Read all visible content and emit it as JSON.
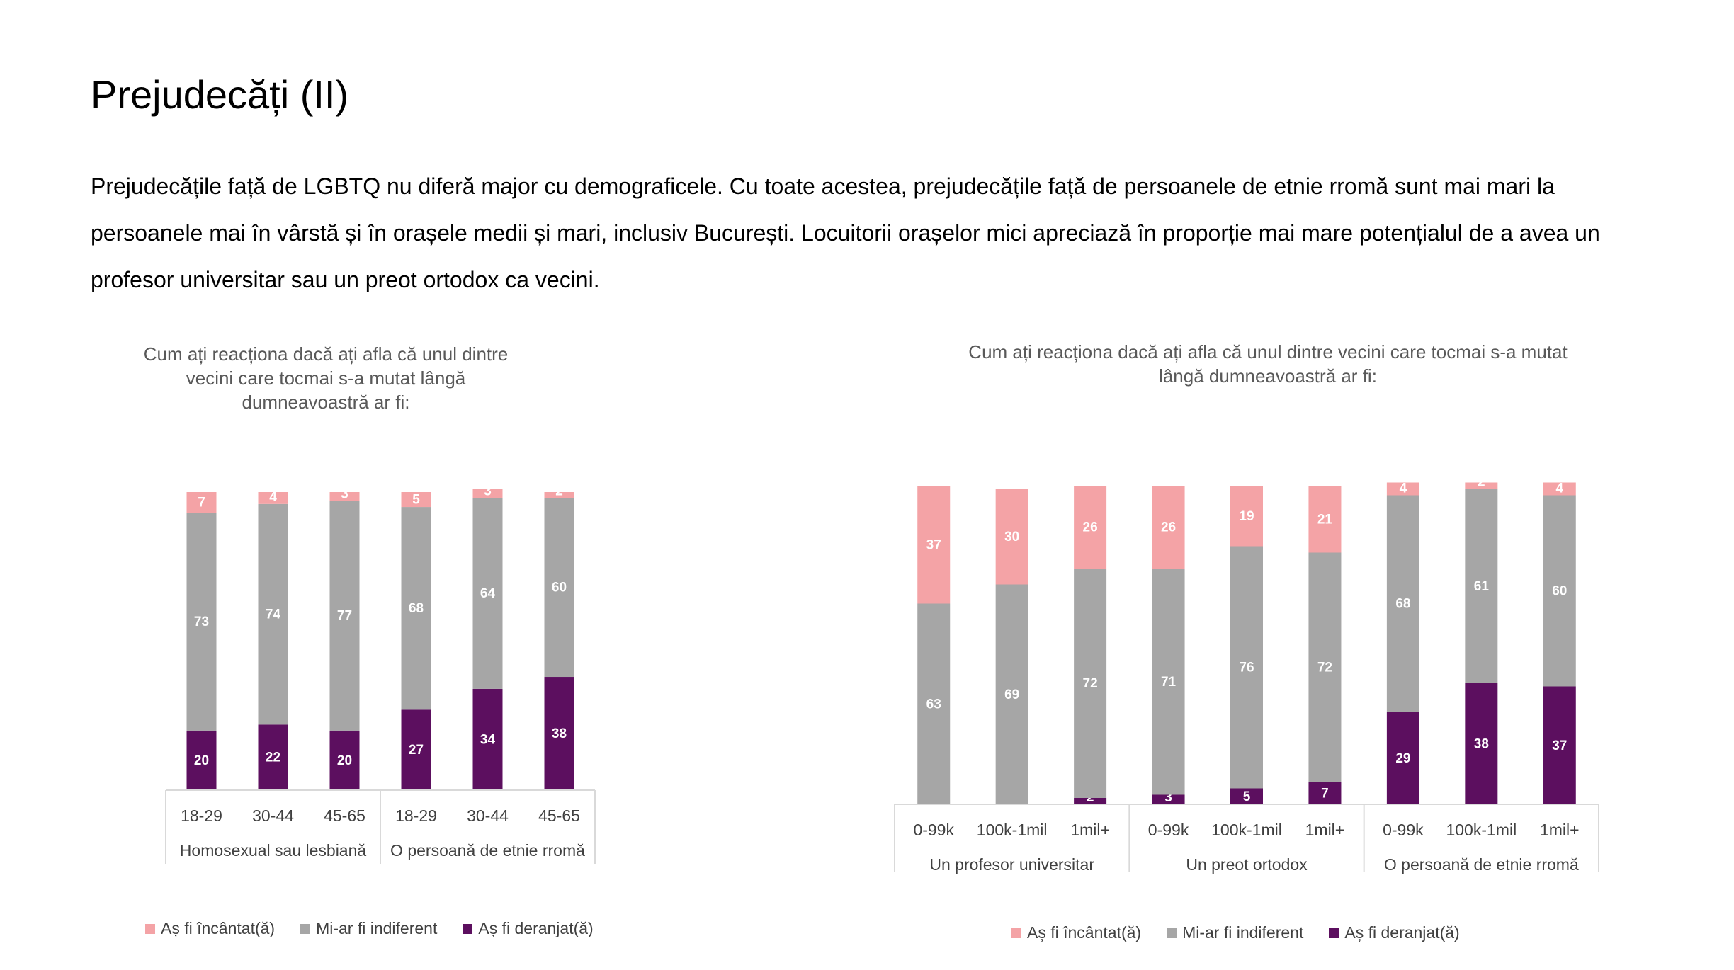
{
  "slide": {
    "title": "Prejudecăți (II)",
    "body": "Prejudecățile față de LGBTQ nu diferă major cu demograficele. Cu toate acestea, prejudecățile față de persoanele de etnie rromă sunt mai mari la persoanele mai în vârstă și în orașele medii și mari, inclusiv București. Locuitorii orașelor mici apreciază în proporție mai mare potențialul de a avea un profesor universitar sau un preot ortodox ca vecini."
  },
  "colors": {
    "incantat": "#F4A3A6",
    "indiferent": "#A6A6A6",
    "deranjat": "#5C0F5F"
  },
  "legend": [
    "Aș fi încântat(ă)",
    "Mi-ar fi indiferent",
    "Aș fi deranjat(ă)"
  ],
  "chart_data": [
    {
      "type": "bar",
      "stacked": true,
      "title": "Cum ați reacționa dacă ați afla că unul dintre vecini care tocmai s-a mutat lângă dumneavoastră ar fi:",
      "groups": [
        {
          "label": "Homosexual sau lesbiană",
          "categories": [
            "18-29",
            "30-44",
            "45-65"
          ]
        },
        {
          "label": "O persoană de etnie rromă",
          "categories": [
            "18-29",
            "30-44",
            "45-65"
          ]
        }
      ],
      "series": [
        {
          "name": "Aș fi deranjat(ă)",
          "values": [
            20,
            22,
            20,
            27,
            34,
            38
          ]
        },
        {
          "name": "Mi-ar fi indiferent",
          "values": [
            73,
            74,
            77,
            68,
            64,
            60
          ]
        },
        {
          "name": "Aș fi încântat(ă)",
          "values": [
            7,
            4,
            3,
            5,
            3,
            2
          ]
        }
      ],
      "ylim": [
        0,
        100
      ],
      "legend_position": "bottom"
    },
    {
      "type": "bar",
      "stacked": true,
      "title": "Cum ați reacționa dacă ați afla că unul dintre vecini care tocmai s-a mutat lângă dumneavoastră ar fi:",
      "groups": [
        {
          "label": "Un profesor universitar",
          "categories": [
            "0-99k",
            "100k-1mil",
            "1mil+"
          ]
        },
        {
          "label": "Un preot ortodox",
          "categories": [
            "0-99k",
            "100k-1mil",
            "1mil+"
          ]
        },
        {
          "label": "O persoană de etnie rromă",
          "categories": [
            "0-99k",
            "100k-1mil",
            "1mil+"
          ]
        }
      ],
      "series": [
        {
          "name": "Aș fi deranjat(ă)",
          "values": [
            0,
            0,
            2,
            3,
            5,
            7,
            29,
            38,
            37
          ]
        },
        {
          "name": "Mi-ar fi indiferent",
          "values": [
            63,
            69,
            72,
            71,
            76,
            72,
            68,
            61,
            60
          ]
        },
        {
          "name": "Aș fi încântat(ă)",
          "values": [
            37,
            30,
            26,
            26,
            19,
            21,
            4,
            2,
            4
          ]
        }
      ],
      "ylim": [
        0,
        100
      ],
      "legend_position": "bottom"
    }
  ]
}
